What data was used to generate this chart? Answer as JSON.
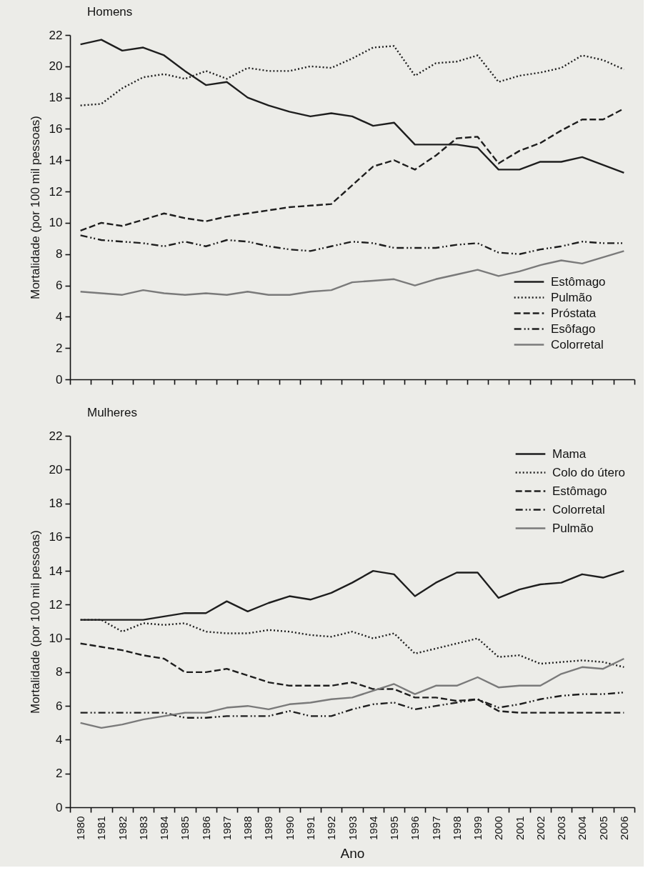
{
  "chart_data": [
    {
      "type": "line",
      "title": "Homens",
      "ylabel": "Mortalidade (por 100 mil pessoas)",
      "categories": [
        "1980",
        "1981",
        "1982",
        "1983",
        "1984",
        "1985",
        "1986",
        "1987",
        "1988",
        "1989",
        "1990",
        "1991",
        "1992",
        "1993",
        "1994",
        "1995",
        "1996",
        "1997",
        "1998",
        "1999",
        "2000",
        "2001",
        "2002",
        "2003",
        "2004",
        "2005",
        "2006"
      ],
      "ylim": [
        0,
        22
      ],
      "yticks": [
        0,
        2,
        4,
        6,
        8,
        10,
        12,
        14,
        16,
        18,
        20,
        22
      ],
      "tick_labels": "y",
      "grid": false,
      "legend": "bottom right",
      "series": [
        {
          "name": "Estômago",
          "color": "#1e1e1e",
          "line_style": "solid",
          "values": [
            21.4,
            21.7,
            21.0,
            21.2,
            20.7,
            19.7,
            18.8,
            19.0,
            18.0,
            17.5,
            17.1,
            16.8,
            17.0,
            16.8,
            16.2,
            16.4,
            15.0,
            15.0,
            15.0,
            14.8,
            13.4,
            13.4,
            13.9,
            13.9,
            14.2,
            13.7,
            13.2
          ]
        },
        {
          "name": "Pulmão",
          "color": "#1e1e1e",
          "line_style": "dotted",
          "values": [
            17.5,
            17.6,
            18.6,
            19.3,
            19.5,
            19.2,
            19.7,
            19.2,
            19.9,
            19.7,
            19.7,
            20.0,
            19.9,
            20.5,
            21.2,
            21.3,
            19.4,
            20.2,
            20.3,
            20.7,
            19.0,
            19.4,
            19.6,
            19.9,
            20.7,
            20.4,
            19.8
          ]
        },
        {
          "name": "Próstata",
          "color": "#1e1e1e",
          "line_style": "dashed",
          "values": [
            9.5,
            10.0,
            9.8,
            10.2,
            10.6,
            10.3,
            10.1,
            10.4,
            10.6,
            10.8,
            11.0,
            11.1,
            11.2,
            12.4,
            13.6,
            14.0,
            13.4,
            14.3,
            15.4,
            15.5,
            13.8,
            14.6,
            15.1,
            15.9,
            16.6,
            16.6,
            17.3
          ]
        },
        {
          "name": "Esôfago",
          "color": "#1e1e1e",
          "line_style": "dashdot",
          "values": [
            9.2,
            8.9,
            8.8,
            8.7,
            8.5,
            8.8,
            8.5,
            8.9,
            8.8,
            8.5,
            8.3,
            8.2,
            8.5,
            8.8,
            8.7,
            8.4,
            8.4,
            8.4,
            8.6,
            8.7,
            8.1,
            8.0,
            8.3,
            8.5,
            8.8,
            8.7,
            8.7
          ]
        },
        {
          "name": "Colorretal",
          "color": "#7a7a7a",
          "line_style": "solid",
          "values": [
            5.6,
            5.5,
            5.4,
            5.7,
            5.5,
            5.4,
            5.5,
            5.4,
            5.6,
            5.4,
            5.4,
            5.6,
            5.7,
            6.2,
            6.3,
            6.4,
            6.0,
            6.4,
            6.7,
            7.0,
            6.6,
            6.9,
            7.3,
            7.6,
            7.4,
            7.8,
            8.2
          ]
        }
      ]
    },
    {
      "type": "line",
      "title": "Mulheres",
      "ylabel": "Mortalidade (por 100 mil pessoas)",
      "xlabel": "Ano",
      "categories": [
        "1980",
        "1981",
        "1982",
        "1983",
        "1984",
        "1985",
        "1986",
        "1987",
        "1988",
        "1989",
        "1990",
        "1991",
        "1992",
        "1993",
        "1994",
        "1995",
        "1996",
        "1997",
        "1998",
        "1999",
        "2000",
        "2001",
        "2002",
        "2003",
        "2004",
        "2005",
        "2006"
      ],
      "ylim": [
        0,
        22
      ],
      "yticks": [
        0,
        2,
        4,
        6,
        8,
        10,
        12,
        14,
        16,
        18,
        20,
        22
      ],
      "grid": false,
      "legend": "top right",
      "series": [
        {
          "name": "Mama",
          "color": "#1e1e1e",
          "line_style": "solid",
          "values": [
            11.1,
            11.1,
            11.1,
            11.1,
            11.3,
            11.5,
            11.5,
            12.2,
            11.6,
            12.1,
            12.5,
            12.3,
            12.7,
            13.3,
            14.0,
            13.8,
            12.5,
            13.3,
            13.9,
            13.9,
            12.4,
            12.9,
            13.2,
            13.3,
            13.8,
            13.6,
            14.0
          ]
        },
        {
          "name": "Colo do útero",
          "color": "#1e1e1e",
          "line_style": "dotted",
          "values": [
            11.1,
            11.1,
            10.4,
            10.9,
            10.8,
            10.9,
            10.4,
            10.3,
            10.3,
            10.5,
            10.4,
            10.2,
            10.1,
            10.4,
            10.0,
            10.3,
            9.1,
            9.4,
            9.7,
            10.0,
            8.9,
            9.0,
            8.5,
            8.6,
            8.7,
            8.6,
            8.3
          ]
        },
        {
          "name": "Estômago",
          "color": "#1e1e1e",
          "line_style": "dashed",
          "values": [
            9.7,
            9.5,
            9.3,
            9.0,
            8.8,
            8.0,
            8.0,
            8.2,
            7.8,
            7.4,
            7.2,
            7.2,
            7.2,
            7.4,
            7.0,
            7.0,
            6.5,
            6.5,
            6.3,
            6.4,
            5.7,
            5.6,
            5.6,
            5.6,
            5.6,
            5.6,
            5.6
          ]
        },
        {
          "name": "Colorretal",
          "color": "#1e1e1e",
          "line_style": "dashdot",
          "values": [
            5.6,
            5.6,
            5.6,
            5.6,
            5.6,
            5.3,
            5.3,
            5.4,
            5.4,
            5.4,
            5.7,
            5.4,
            5.4,
            5.8,
            6.1,
            6.2,
            5.8,
            6.0,
            6.2,
            6.4,
            5.9,
            6.1,
            6.4,
            6.6,
            6.7,
            6.7,
            6.8
          ]
        },
        {
          "name": "Pulmão",
          "color": "#7a7a7a",
          "line_style": "solid",
          "values": [
            5.0,
            4.7,
            4.9,
            5.2,
            5.4,
            5.6,
            5.6,
            5.9,
            6.0,
            5.8,
            6.1,
            6.2,
            6.4,
            6.5,
            6.9,
            7.3,
            6.7,
            7.2,
            7.2,
            7.7,
            7.1,
            7.2,
            7.2,
            7.9,
            8.3,
            8.2,
            8.8
          ]
        }
      ]
    }
  ]
}
